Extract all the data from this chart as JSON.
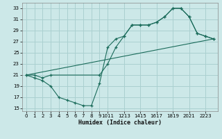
{
  "xlabel": "Humidex (Indice chaleur)",
  "bg_color": "#cce8e8",
  "grid_color": "#aad0d0",
  "line_color": "#1a6b5a",
  "xlim": [
    -0.5,
    23.5
  ],
  "ylim": [
    14.5,
    34.0
  ],
  "xtick_labels": [
    "0",
    "1",
    "2",
    "3",
    "4",
    "5",
    "6",
    "7",
    "8",
    "9",
    "1011",
    "1213",
    "1415",
    "1617",
    "1819",
    "2021",
    "2223"
  ],
  "xticks": [
    0,
    1,
    2,
    3,
    4,
    5,
    6,
    7,
    8,
    9,
    10,
    12,
    14,
    16,
    18,
    20,
    22
  ],
  "yticks": [
    15,
    17,
    19,
    21,
    23,
    25,
    27,
    29,
    31,
    33
  ],
  "series1_x": [
    0,
    1,
    2,
    3,
    4,
    5,
    6,
    7,
    8,
    9,
    10,
    11,
    12,
    13,
    14,
    15,
    16,
    17,
    18,
    19,
    20,
    21,
    22,
    23
  ],
  "series1_y": [
    21,
    20.5,
    20,
    19,
    17,
    16.5,
    16,
    15.5,
    15.5,
    19.5,
    26,
    27.5,
    28,
    30,
    30,
    30,
    30.5,
    31.5,
    33,
    33,
    31.5,
    28.5,
    28,
    27.5
  ],
  "series2_x": [
    0,
    1,
    2,
    3,
    9,
    10,
    11,
    12,
    13,
    14,
    15,
    16,
    17,
    18,
    19,
    20,
    21,
    22,
    23
  ],
  "series2_y": [
    21,
    21,
    20.5,
    21,
    21,
    23,
    26,
    28,
    30,
    30,
    30,
    30.5,
    31.5,
    33,
    33,
    31.5,
    28.5,
    28,
    27.5
  ],
  "series3_x": [
    0,
    23
  ],
  "series3_y": [
    21,
    27.5
  ]
}
